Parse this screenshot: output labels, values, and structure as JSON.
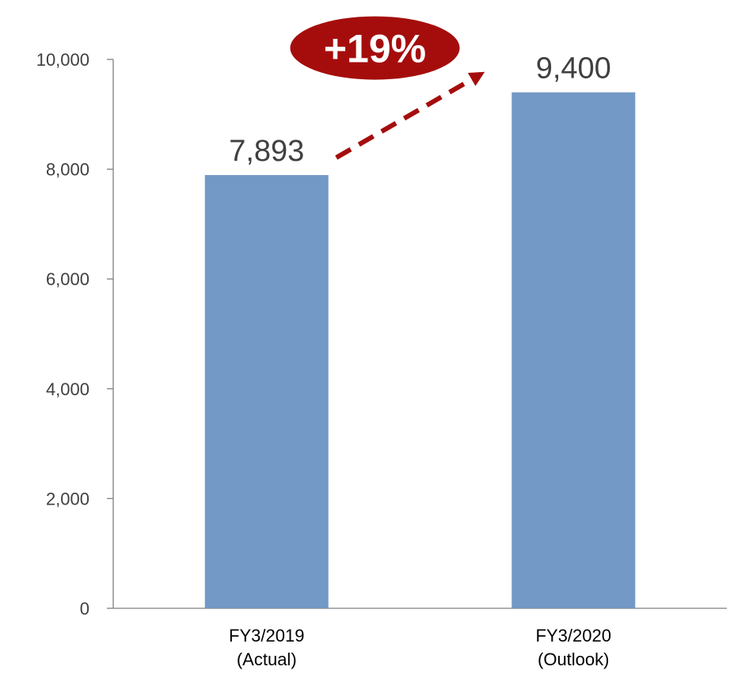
{
  "chart_data": {
    "type": "bar",
    "categories": [
      [
        "FY3/2019",
        "(Actual)"
      ],
      [
        "FY3/2020",
        "(Outlook)"
      ]
    ],
    "values": [
      7893,
      9400
    ],
    "value_labels": [
      "7,893",
      "9,400"
    ],
    "ylim": [
      0,
      10000
    ],
    "yticks": [
      0,
      2000,
      4000,
      6000,
      8000,
      10000
    ],
    "ytick_labels": [
      "0",
      "2,000",
      "4,000",
      "6,000",
      "8,000",
      "10,000"
    ],
    "grid": false,
    "annotation": {
      "text": "+19%",
      "arrow": "dashed"
    },
    "colors": {
      "bar": "#7399c6",
      "accent": "#a50d0d",
      "axis": "#7f7f7f",
      "text": "#404040"
    }
  }
}
